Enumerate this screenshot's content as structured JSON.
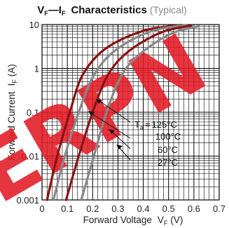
{
  "chart_data": {
    "type": "line",
    "title": "VF—IF Characteristics",
    "title_parts": {
      "v": "V",
      "v_sub": "F",
      "dash": "—",
      "i": "I",
      "i_sub": "F",
      "rest": "Characteristics"
    },
    "subtitle": "(Typical)",
    "xlabel": "Forward Voltage",
    "xlabel_symbol": {
      "base": "V",
      "sub": "F",
      "unit": "(V)"
    },
    "ylabel": "Forward Current",
    "ylabel_symbol": {
      "base": "I",
      "sub": "F",
      "unit": "(A)"
    },
    "x_scale": "linear",
    "y_scale": "log",
    "xlim": [
      0,
      0.7
    ],
    "ylim": [
      0.001,
      10
    ],
    "x_ticks": [
      "0",
      "0.1",
      "0.2",
      "0.3",
      "0.4",
      "0.5",
      "0.6",
      "0.7"
    ],
    "y_ticks": [
      "0.001",
      "0.01",
      "0.1",
      "1",
      "10"
    ],
    "grid": true,
    "legend_title": "Ta = 125°C",
    "series": [
      {
        "name": "125°C",
        "color": "#8b1111",
        "points": [
          [
            0.02,
            0.001
          ],
          [
            0.06,
            0.01
          ],
          [
            0.11,
            0.1
          ],
          [
            0.16,
            0.7
          ],
          [
            0.25,
            2.8
          ],
          [
            0.4,
            7.2
          ],
          [
            0.55,
            9.8
          ]
        ]
      },
      {
        "name": "100°C",
        "color": "#888888",
        "points": [
          [
            0.045,
            0.001
          ],
          [
            0.09,
            0.01
          ],
          [
            0.145,
            0.1
          ],
          [
            0.205,
            0.7
          ],
          [
            0.29,
            2.6
          ],
          [
            0.43,
            7.0
          ],
          [
            0.57,
            9.8
          ]
        ]
      },
      {
        "name": "60°C",
        "color": "#8b1111",
        "points": [
          [
            0.095,
            0.001
          ],
          [
            0.145,
            0.01
          ],
          [
            0.2,
            0.1
          ],
          [
            0.26,
            0.7
          ],
          [
            0.34,
            2.4
          ],
          [
            0.47,
            6.6
          ],
          [
            0.59,
            9.5
          ]
        ]
      },
      {
        "name": "27°C",
        "color": "#888888",
        "points": [
          [
            0.155,
            0.001
          ],
          [
            0.205,
            0.01
          ],
          [
            0.255,
            0.1
          ],
          [
            0.315,
            0.7
          ],
          [
            0.39,
            2.2
          ],
          [
            0.51,
            6.2
          ],
          [
            0.62,
            9.2
          ]
        ]
      }
    ],
    "watermark": "ERPN",
    "colors": {
      "watermark": "#e21b26",
      "dark_curve": "#8b1111",
      "grey_curve": "#888888",
      "grid": "#000000"
    }
  }
}
